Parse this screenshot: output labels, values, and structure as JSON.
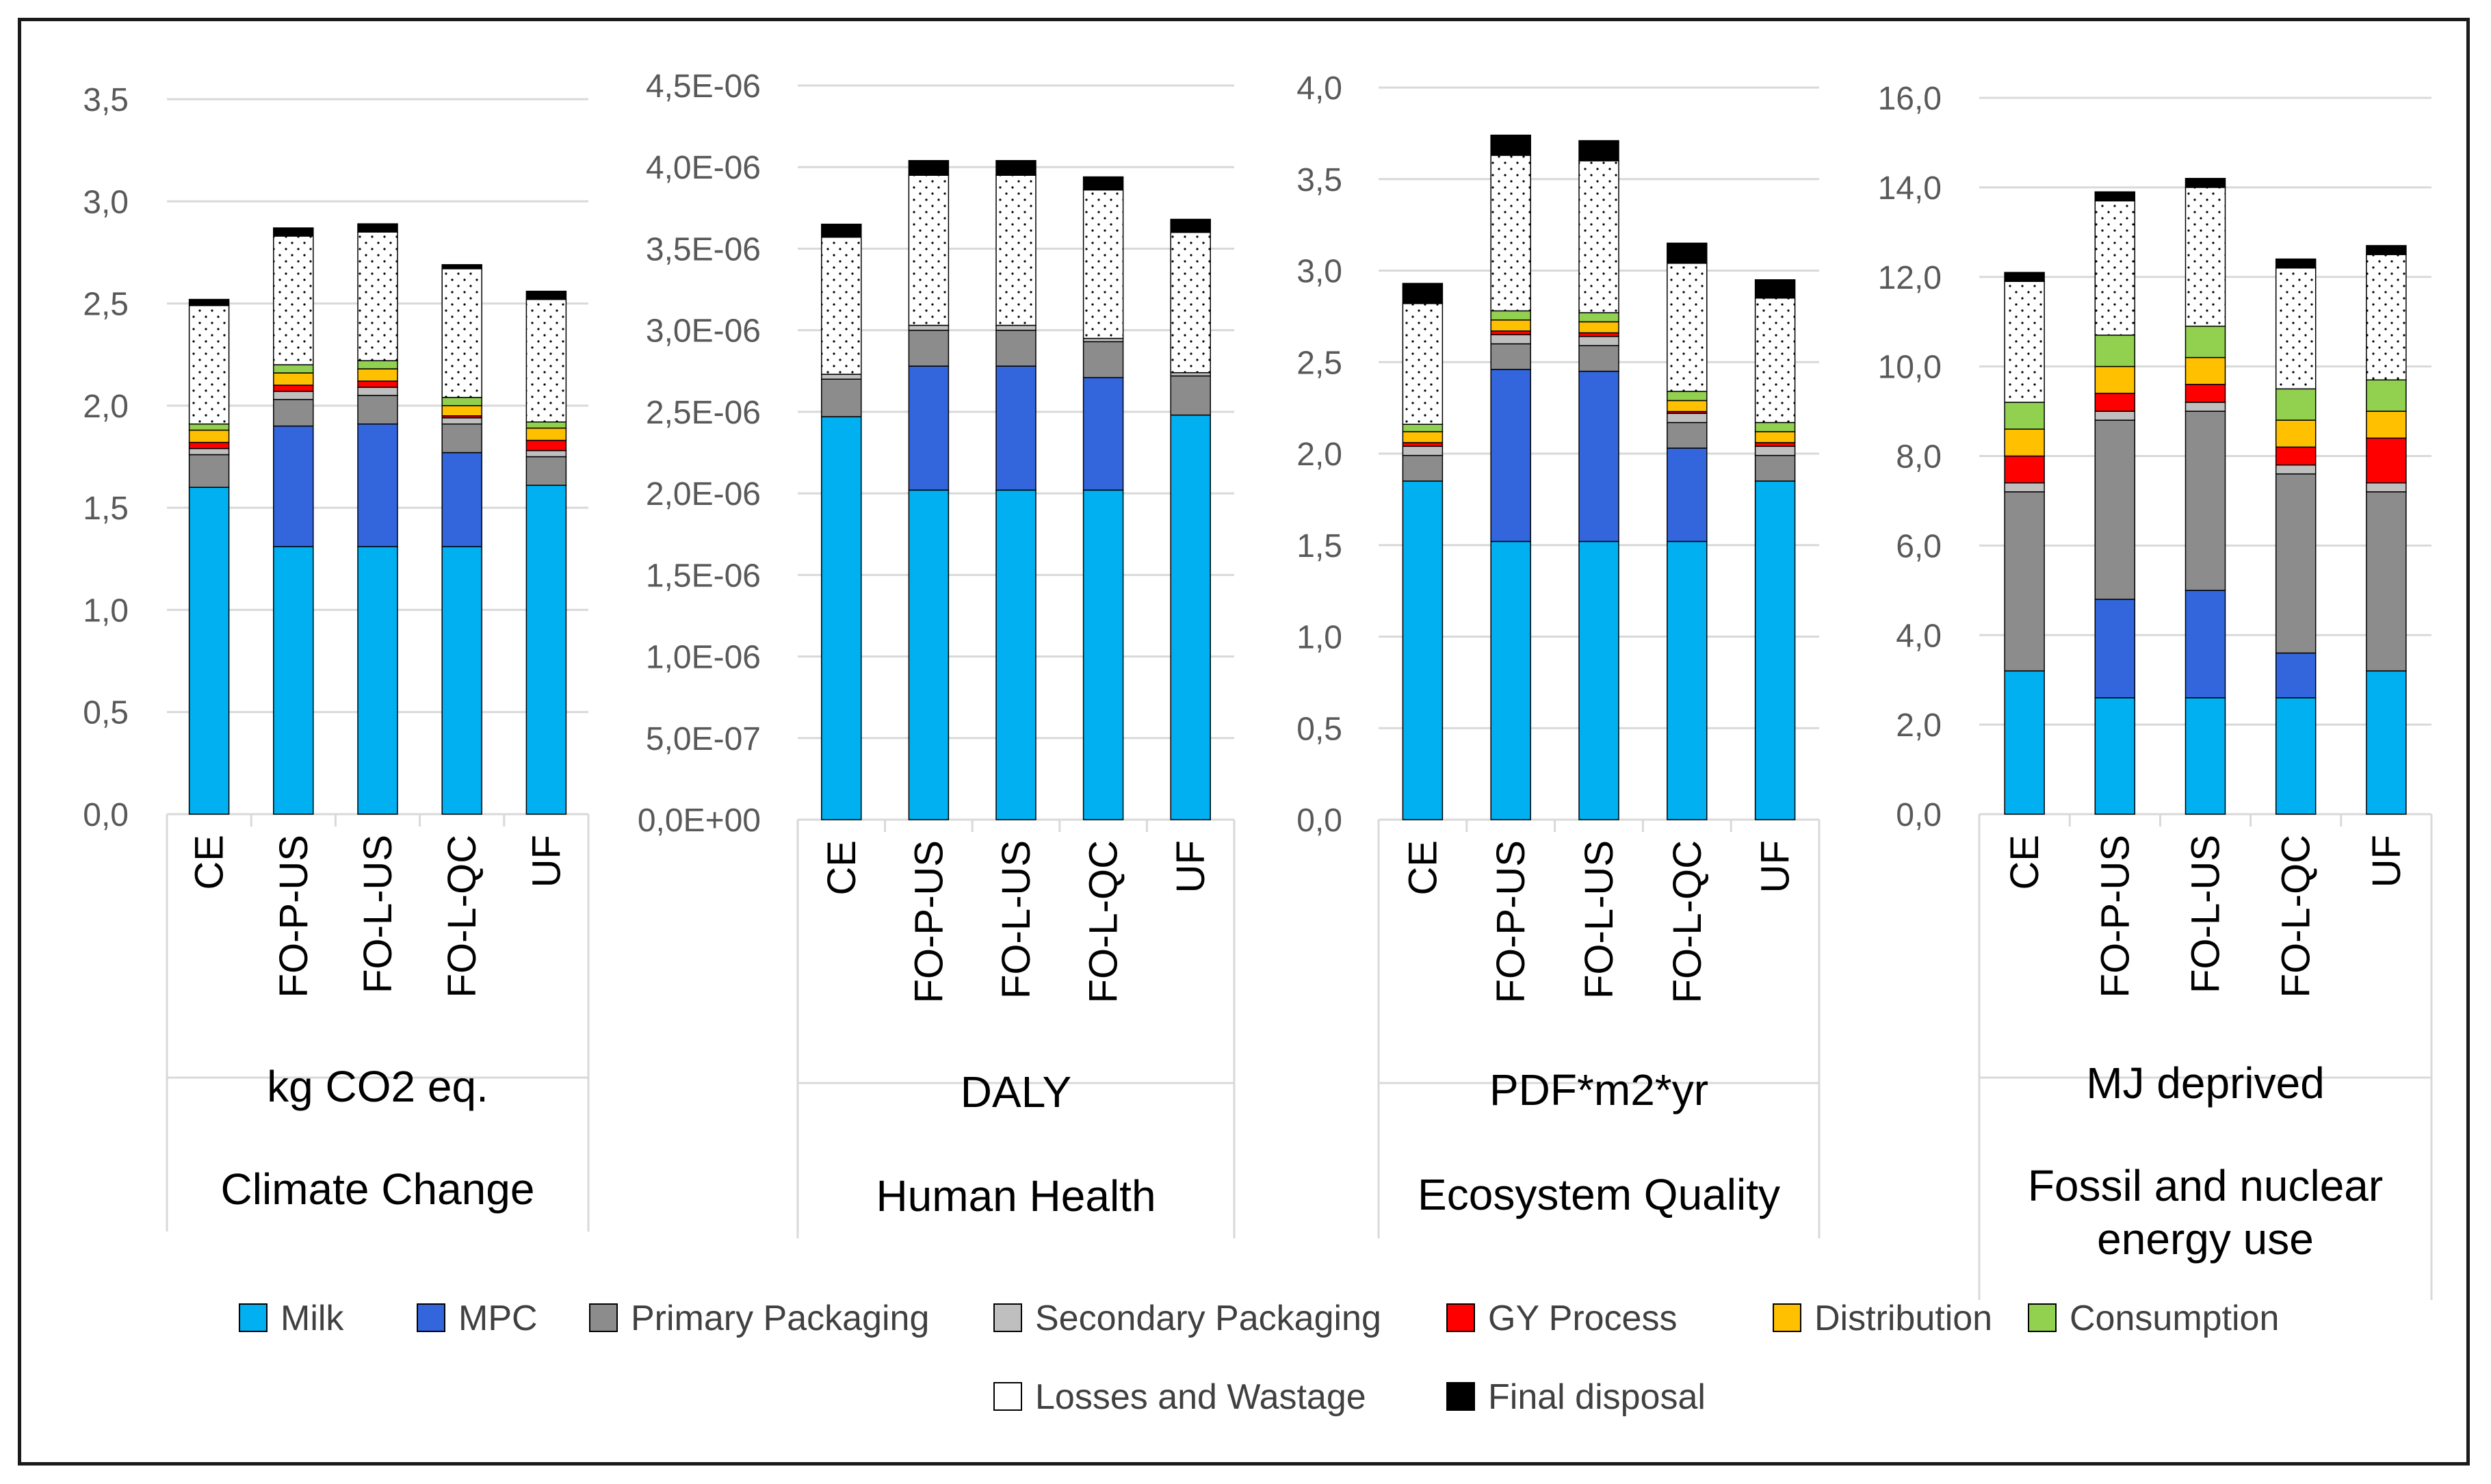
{
  "colors": {
    "Milk": "#00b0f0",
    "MPC": "#3366dd",
    "Primary Packaging": "#8c8c8c",
    "Secondary Packaging": "#bfbfbf",
    "GY Process": "#ff0000",
    "Distribution": "#ffc000",
    "Consumption": "#92d050",
    "Losses and Wastage": "#ffffff",
    "Final disposal": "#000000"
  },
  "legend": [
    "Milk",
    "MPC",
    "Primary Packaging",
    "Secondary Packaging",
    "GY Process",
    "Distribution",
    "Consumption",
    "Losses and Wastage",
    "Final disposal"
  ],
  "chart_data": [
    {
      "type": "bar",
      "stacked": true,
      "unit": "kg CO2 eq.",
      "title": "Climate Change",
      "ylim": [
        0,
        3.5
      ],
      "yticks": [
        "0,0",
        "0,5",
        "1,0",
        "1,5",
        "2,0",
        "2,5",
        "3,0",
        "3,5"
      ],
      "categories": [
        "CE",
        "FO-P-US",
        "FO-L-US",
        "FO-L-QC",
        "UF"
      ],
      "series": [
        {
          "name": "Milk",
          "values": [
            1.6,
            1.31,
            1.31,
            1.31,
            1.61
          ]
        },
        {
          "name": "MPC",
          "values": [
            0,
            0.59,
            0.6,
            0.46,
            0
          ]
        },
        {
          "name": "Primary Packaging",
          "values": [
            0.16,
            0.13,
            0.14,
            0.14,
            0.14
          ]
        },
        {
          "name": "Secondary Packaging",
          "values": [
            0.03,
            0.04,
            0.04,
            0.03,
            0.03
          ]
        },
        {
          "name": "GY Process",
          "values": [
            0.03,
            0.03,
            0.03,
            0.01,
            0.05
          ]
        },
        {
          "name": "Distribution",
          "values": [
            0.06,
            0.06,
            0.06,
            0.05,
            0.06
          ]
        },
        {
          "name": "Consumption",
          "values": [
            0.03,
            0.04,
            0.04,
            0.04,
            0.03
          ]
        },
        {
          "name": "Losses and Wastage",
          "values": [
            0.58,
            0.63,
            0.63,
            0.63,
            0.6
          ]
        },
        {
          "name": "Final disposal",
          "values": [
            0.03,
            0.04,
            0.04,
            0.02,
            0.04
          ]
        }
      ]
    },
    {
      "type": "bar",
      "stacked": true,
      "unit": "DALY",
      "title": "Human Health",
      "ylim": [
        0,
        4.5e-06
      ],
      "yticks": [
        "0,0E+00",
        "5,0E-07",
        "1,0E-06",
        "1,5E-06",
        "2,0E-06",
        "2,5E-06",
        "3,0E-06",
        "3,5E-06",
        "4,0E-06",
        "4,5E-06"
      ],
      "categories": [
        "CE",
        "FO-P-US",
        "FO-L-US",
        "FO-L-QC",
        "UF"
      ],
      "series": [
        {
          "name": "Milk",
          "values": [
            2.47e-06,
            2.02e-06,
            2.02e-06,
            2.02e-06,
            2.48e-06
          ]
        },
        {
          "name": "MPC",
          "values": [
            0,
            7.6e-07,
            7.6e-07,
            6.9e-07,
            0
          ]
        },
        {
          "name": "Primary Packaging",
          "values": [
            2.3e-07,
            2.2e-07,
            2.2e-07,
            2.2e-07,
            2.4e-07
          ]
        },
        {
          "name": "Secondary Packaging",
          "values": [
            3e-08,
            3e-08,
            3e-08,
            2e-08,
            2e-08
          ]
        },
        {
          "name": "GY Process",
          "values": [
            0,
            0,
            0,
            0,
            0
          ]
        },
        {
          "name": "Distribution",
          "values": [
            0,
            0,
            0,
            0,
            0
          ]
        },
        {
          "name": "Consumption",
          "values": [
            0,
            0,
            0,
            0,
            0
          ]
        },
        {
          "name": "Losses and Wastage",
          "values": [
            8.4e-07,
            9.2e-07,
            9.2e-07,
            9.1e-07,
            8.6e-07
          ]
        },
        {
          "name": "Final disposal",
          "values": [
            8e-08,
            9e-08,
            9e-08,
            8e-08,
            8e-08
          ]
        }
      ]
    },
    {
      "type": "bar",
      "stacked": true,
      "unit": "PDF*m2*yr",
      "title": "Ecosystem Quality",
      "ylim": [
        0,
        4.0
      ],
      "yticks": [
        "0,0",
        "0,5",
        "1,0",
        "1,5",
        "2,0",
        "2,5",
        "3,0",
        "3,5",
        "4,0"
      ],
      "categories": [
        "CE",
        "FO-P-US",
        "FO-L-US",
        "FO-L-QC",
        "UF"
      ],
      "series": [
        {
          "name": "Milk",
          "values": [
            1.85,
            1.52,
            1.52,
            1.52,
            1.85
          ]
        },
        {
          "name": "MPC",
          "values": [
            0,
            0.94,
            0.93,
            0.51,
            0
          ]
        },
        {
          "name": "Primary Packaging",
          "values": [
            0.14,
            0.14,
            0.14,
            0.14,
            0.14
          ]
        },
        {
          "name": "Secondary Packaging",
          "values": [
            0.05,
            0.05,
            0.05,
            0.05,
            0.05
          ]
        },
        {
          "name": "GY Process",
          "values": [
            0.02,
            0.02,
            0.02,
            0.01,
            0.02
          ]
        },
        {
          "name": "Distribution",
          "values": [
            0.06,
            0.06,
            0.06,
            0.06,
            0.06
          ]
        },
        {
          "name": "Consumption",
          "values": [
            0.04,
            0.05,
            0.05,
            0.05,
            0.05
          ]
        },
        {
          "name": "Losses and Wastage",
          "values": [
            0.66,
            0.85,
            0.83,
            0.7,
            0.68
          ]
        },
        {
          "name": "Final disposal",
          "values": [
            0.11,
            0.11,
            0.11,
            0.11,
            0.1
          ]
        }
      ]
    },
    {
      "type": "bar",
      "stacked": true,
      "unit": "MJ deprived",
      "title": "Fossil and nuclear energy use",
      "ylim": [
        0,
        16.0
      ],
      "yticks": [
        "0,0",
        "2,0",
        "4,0",
        "6,0",
        "8,0",
        "10,0",
        "12,0",
        "14,0",
        "16,0"
      ],
      "categories": [
        "CE",
        "FO-P-US",
        "FO-L-US",
        "FO-L-QC",
        "UF"
      ],
      "series": [
        {
          "name": "Milk",
          "values": [
            3.2,
            2.6,
            2.6,
            2.6,
            3.2
          ]
        },
        {
          "name": "MPC",
          "values": [
            0,
            2.2,
            2.4,
            1.0,
            0
          ]
        },
        {
          "name": "Primary Packaging",
          "values": [
            4.0,
            4.0,
            4.0,
            4.0,
            4.0
          ]
        },
        {
          "name": "Secondary Packaging",
          "values": [
            0.2,
            0.2,
            0.2,
            0.2,
            0.2
          ]
        },
        {
          "name": "GY Process",
          "values": [
            0.6,
            0.4,
            0.4,
            0.4,
            1.0
          ]
        },
        {
          "name": "Distribution",
          "values": [
            0.6,
            0.6,
            0.6,
            0.6,
            0.6
          ]
        },
        {
          "name": "Consumption",
          "values": [
            0.6,
            0.7,
            0.7,
            0.7,
            0.7
          ]
        },
        {
          "name": "Losses and Wastage",
          "values": [
            2.7,
            3.0,
            3.1,
            2.7,
            2.8
          ]
        },
        {
          "name": "Final disposal",
          "values": [
            0.2,
            0.2,
            0.2,
            0.2,
            0.2
          ]
        }
      ]
    }
  ]
}
